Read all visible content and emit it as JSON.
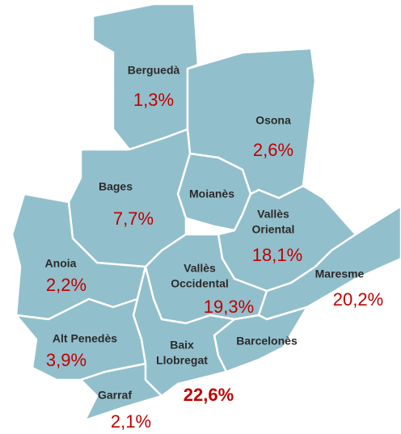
{
  "regions": [
    {
      "name": [
        "Berguedà"
      ],
      "share": "1,3%"
    },
    {
      "name": [
        "Osona"
      ],
      "share": "2,6%"
    },
    {
      "name": [
        "Bages"
      ],
      "share": "7,7%"
    },
    {
      "name": [
        "Moianès"
      ]
    },
    {
      "name": [
        "Vallès",
        "Oriental"
      ],
      "share": "18,1%"
    },
    {
      "name": [
        "Anoia"
      ],
      "share": "2,2%"
    },
    {
      "name": [
        "Vallès",
        "Occidental"
      ],
      "share": "19,3%"
    },
    {
      "name": [
        "Maresme"
      ],
      "share": "20,2%"
    },
    {
      "name": [
        "Alt Penedès"
      ],
      "share": "3,9%"
    },
    {
      "name": [
        "Baix",
        "Llobregat"
      ]
    },
    {
      "name": [
        "Barcelonès"
      ],
      "share": "22,6%"
    },
    {
      "name": [
        "Garraf"
      ],
      "share": "2,1%"
    }
  ]
}
